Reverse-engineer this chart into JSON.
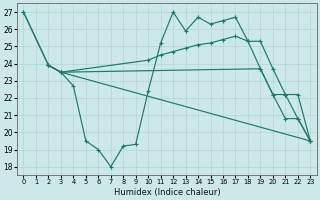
{
  "xlabel": "Humidex (Indice chaleur)",
  "bg_color": "#cce8e8",
  "grid_color": "#aacccc",
  "line_color": "#1a7a6e",
  "ylim": [
    17.5,
    27.5
  ],
  "xlim": [
    -0.5,
    23.5
  ],
  "yticks": [
    18,
    19,
    20,
    21,
    22,
    23,
    24,
    25,
    26,
    27
  ],
  "xticks": [
    0,
    1,
    2,
    3,
    4,
    5,
    6,
    7,
    8,
    9,
    10,
    11,
    12,
    13,
    14,
    15,
    16,
    17,
    18,
    19,
    20,
    21,
    22,
    23
  ],
  "line1": {
    "x": [
      0,
      2,
      3,
      4,
      5,
      6,
      7,
      8,
      9,
      10,
      11,
      12,
      13,
      14,
      15,
      16,
      17,
      18,
      19,
      20,
      21,
      22,
      23
    ],
    "y": [
      27,
      23.9,
      23.5,
      22.7,
      19.5,
      19.0,
      18.0,
      19.2,
      19.3,
      22.4,
      25.2,
      27.0,
      25.9,
      26.7,
      26.3,
      26.5,
      26.7,
      25.3,
      25.3,
      23.7,
      22.2,
      20.8,
      19.5
    ]
  },
  "line2": {
    "x": [
      0,
      2,
      3,
      10,
      11,
      12,
      13,
      14,
      15,
      16,
      17,
      18,
      19,
      20,
      21,
      22,
      23
    ],
    "y": [
      27,
      23.9,
      23.5,
      24.2,
      24.5,
      24.7,
      24.9,
      25.1,
      25.2,
      25.4,
      25.6,
      25.3,
      23.7,
      22.2,
      22.2,
      22.2,
      19.5
    ]
  },
  "line3": {
    "x": [
      2,
      3,
      19,
      20,
      21,
      22,
      23
    ],
    "y": [
      23.9,
      23.5,
      23.7,
      22.2,
      20.8,
      20.8,
      19.5
    ]
  },
  "line4": {
    "x": [
      2,
      3,
      23
    ],
    "y": [
      23.9,
      23.5,
      19.5
    ]
  }
}
